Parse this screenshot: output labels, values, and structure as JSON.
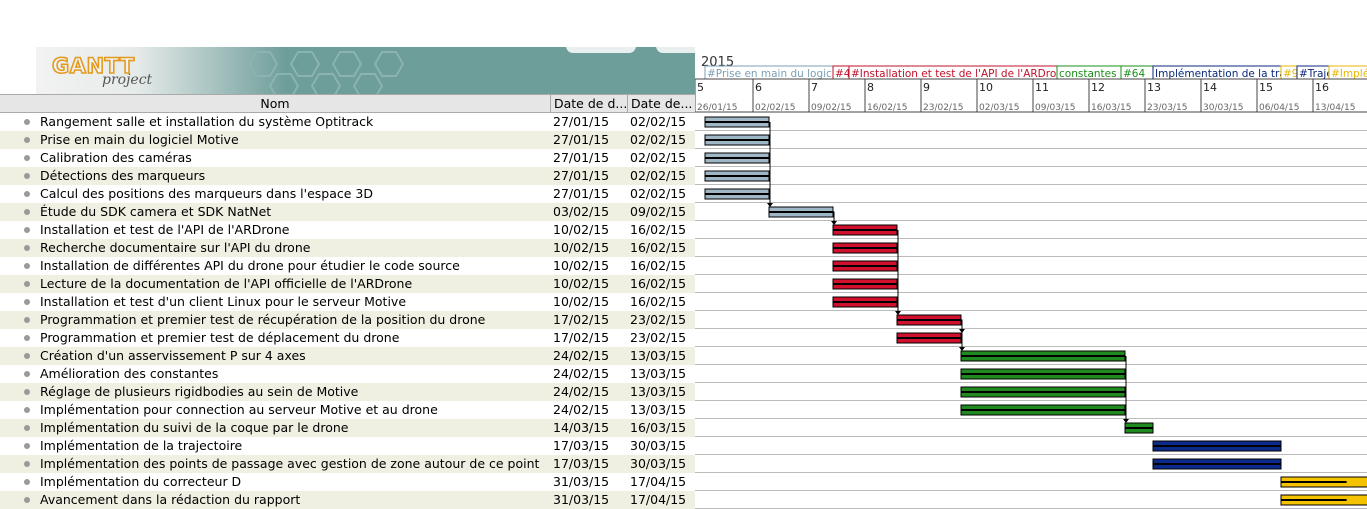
{
  "logo": {
    "main": "GANTT",
    "sub": "project"
  },
  "columns": {
    "name": "Nom",
    "start": "Date de d...",
    "end": "Date de..."
  },
  "timeline": {
    "year": "2015",
    "weeks": [
      "5",
      "6",
      "7",
      "8",
      "9",
      "10",
      "11",
      "12",
      "13",
      "14",
      "15",
      "16"
    ],
    "dates": [
      "26/01/15",
      "02/02/15",
      "09/02/15",
      "16/02/15",
      "23/02/15",
      "02/03/15",
      "09/03/15",
      "16/03/15",
      "23/03/15",
      "30/03/15",
      "06/04/15",
      "13/04/15"
    ],
    "phases": [
      {
        "label": "#Prise en main du logiciel",
        "color": "#7a9fb5",
        "start": 1,
        "end": 17
      },
      {
        "label": "#4",
        "color": "#c0102a",
        "start": 17,
        "end": 19
      },
      {
        "label": "#Installation et test de l'API de l'ARDrone",
        "color": "#c0102a",
        "start": 19,
        "end": 45
      },
      {
        "label": "constantes",
        "color": "#1a8f1a",
        "start": 45,
        "end": 53
      },
      {
        "label": "#64",
        "color": "#1a8f1a",
        "start": 53,
        "end": 57
      },
      {
        "label": "Implémentation de la trajectoire",
        "color": "#0a2a7a",
        "start": 57,
        "end": 73
      },
      {
        "label": "#9",
        "color": "#e8b600",
        "start": 73,
        "end": 75
      },
      {
        "label": "#Trajectoire",
        "color": "#0a2a7a",
        "start": 75,
        "end": 79
      },
      {
        "label": "#Implémentation du correcteur D",
        "color": "#e8b600",
        "start": 79,
        "end": 96
      }
    ]
  },
  "colors": {
    "gray": "#9fb6c6",
    "red": "#d0102c",
    "green": "#1f8a1f",
    "blue": "#0b2a8a",
    "yellow": "#f5c200"
  },
  "tasks": [
    {
      "name": "Rangement salle et installation du système Optitrack",
      "start": "27/01/15",
      "end": "02/02/15",
      "s": 1,
      "e": 9,
      "color": "gray"
    },
    {
      "name": "Prise en main du logiciel Motive",
      "start": "27/01/15",
      "end": "02/02/15",
      "s": 1,
      "e": 9,
      "color": "gray"
    },
    {
      "name": "Calibration des caméras",
      "start": "27/01/15",
      "end": "02/02/15",
      "s": 1,
      "e": 9,
      "color": "gray"
    },
    {
      "name": "Détections des marqueurs",
      "start": "27/01/15",
      "end": "02/02/15",
      "s": 1,
      "e": 9,
      "color": "gray"
    },
    {
      "name": "Calcul des positions des marqueurs dans l'espace 3D",
      "start": "27/01/15",
      "end": "02/02/15",
      "s": 1,
      "e": 9,
      "color": "gray"
    },
    {
      "name": "Étude du SDK camera et SDK NatNet",
      "start": "03/02/15",
      "end": "09/02/15",
      "s": 9,
      "e": 17,
      "color": "gray"
    },
    {
      "name": "Installation et test de l'API de l'ARDrone",
      "start": "10/02/15",
      "end": "16/02/15",
      "s": 17,
      "e": 25,
      "color": "red"
    },
    {
      "name": "Recherche documentaire sur l'API du drone",
      "start": "10/02/15",
      "end": "16/02/15",
      "s": 17,
      "e": 25,
      "color": "red"
    },
    {
      "name": "Installation de différentes API du drone pour étudier le code source",
      "start": "10/02/15",
      "end": "16/02/15",
      "s": 17,
      "e": 25,
      "color": "red"
    },
    {
      "name": "Lecture de la documentation de l'API officielle de l'ARDrone",
      "start": "10/02/15",
      "end": "16/02/15",
      "s": 17,
      "e": 25,
      "color": "red"
    },
    {
      "name": "Installation et test d'un client Linux pour le serveur Motive",
      "start": "10/02/15",
      "end": "16/02/15",
      "s": 17,
      "e": 25,
      "color": "red"
    },
    {
      "name": "Programmation et premier test de récupération de la position du drone",
      "start": "17/02/15",
      "end": "23/02/15",
      "s": 25,
      "e": 33,
      "color": "red"
    },
    {
      "name": "Programmation et premier test de déplacement du drone",
      "start": "17/02/15",
      "end": "23/02/15",
      "s": 25,
      "e": 33,
      "color": "red"
    },
    {
      "name": "Création d'un asservissement P sur 4 axes",
      "start": "24/02/15",
      "end": "13/03/15",
      "s": 33,
      "e": 53.5,
      "color": "green"
    },
    {
      "name": "Amélioration des constantes",
      "start": "24/02/15",
      "end": "13/03/15",
      "s": 33,
      "e": 53.5,
      "color": "green"
    },
    {
      "name": "Réglage de plusieurs rigidbodies au sein de Motive",
      "start": "24/02/15",
      "end": "13/03/15",
      "s": 33,
      "e": 53.5,
      "color": "green"
    },
    {
      "name": "Implémentation pour connection au serveur Motive et au drone",
      "start": "24/02/15",
      "end": "13/03/15",
      "s": 33,
      "e": 53.5,
      "color": "green"
    },
    {
      "name": "Implémentation du suivi de la coque par le drone",
      "start": "14/03/15",
      "end": "16/03/15",
      "s": 53.5,
      "e": 57,
      "color": "green"
    },
    {
      "name": "Implémentation de la trajectoire",
      "start": "17/03/15",
      "end": "30/03/15",
      "s": 57,
      "e": 73,
      "color": "blue"
    },
    {
      "name": "Implémentation des points de passage avec gestion de zone autour de ce point",
      "start": "17/03/15",
      "end": "30/03/15",
      "s": 57,
      "e": 73,
      "color": "blue"
    },
    {
      "name": "Implémentation du correcteur D",
      "start": "31/03/15",
      "end": "17/04/15",
      "s": 73,
      "e": 93.5,
      "color": "yellow",
      "progress": 0.4
    },
    {
      "name": "Avancement dans la rédaction du rapport",
      "start": "31/03/15",
      "end": "17/04/15",
      "s": 73,
      "e": 93.5,
      "color": "yellow",
      "progress": 0.4
    }
  ]
}
